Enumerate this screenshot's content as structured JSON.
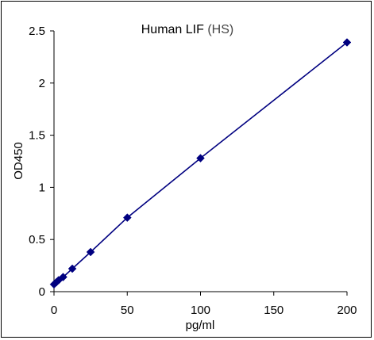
{
  "chart_data": {
    "type": "line",
    "title_main": "Human LIF",
    "title_suffix": "(HS)",
    "xlabel": "pg/ml",
    "ylabel": "OD450",
    "xlim": [
      0,
      200
    ],
    "ylim": [
      0,
      2.5
    ],
    "x_ticks": [
      "0",
      "50",
      "100",
      "150",
      "200"
    ],
    "y_ticks": [
      "0",
      "0.5",
      "1",
      "1.5",
      "2",
      "2.5"
    ],
    "grid": false,
    "series": [
      {
        "color": "#000080",
        "marker": "diamond",
        "x": [
          0,
          1.56,
          3.12,
          6.25,
          12.5,
          25,
          50,
          100,
          200
        ],
        "y": [
          0.07,
          0.09,
          0.11,
          0.14,
          0.22,
          0.38,
          0.71,
          1.28,
          2.39
        ]
      }
    ]
  }
}
